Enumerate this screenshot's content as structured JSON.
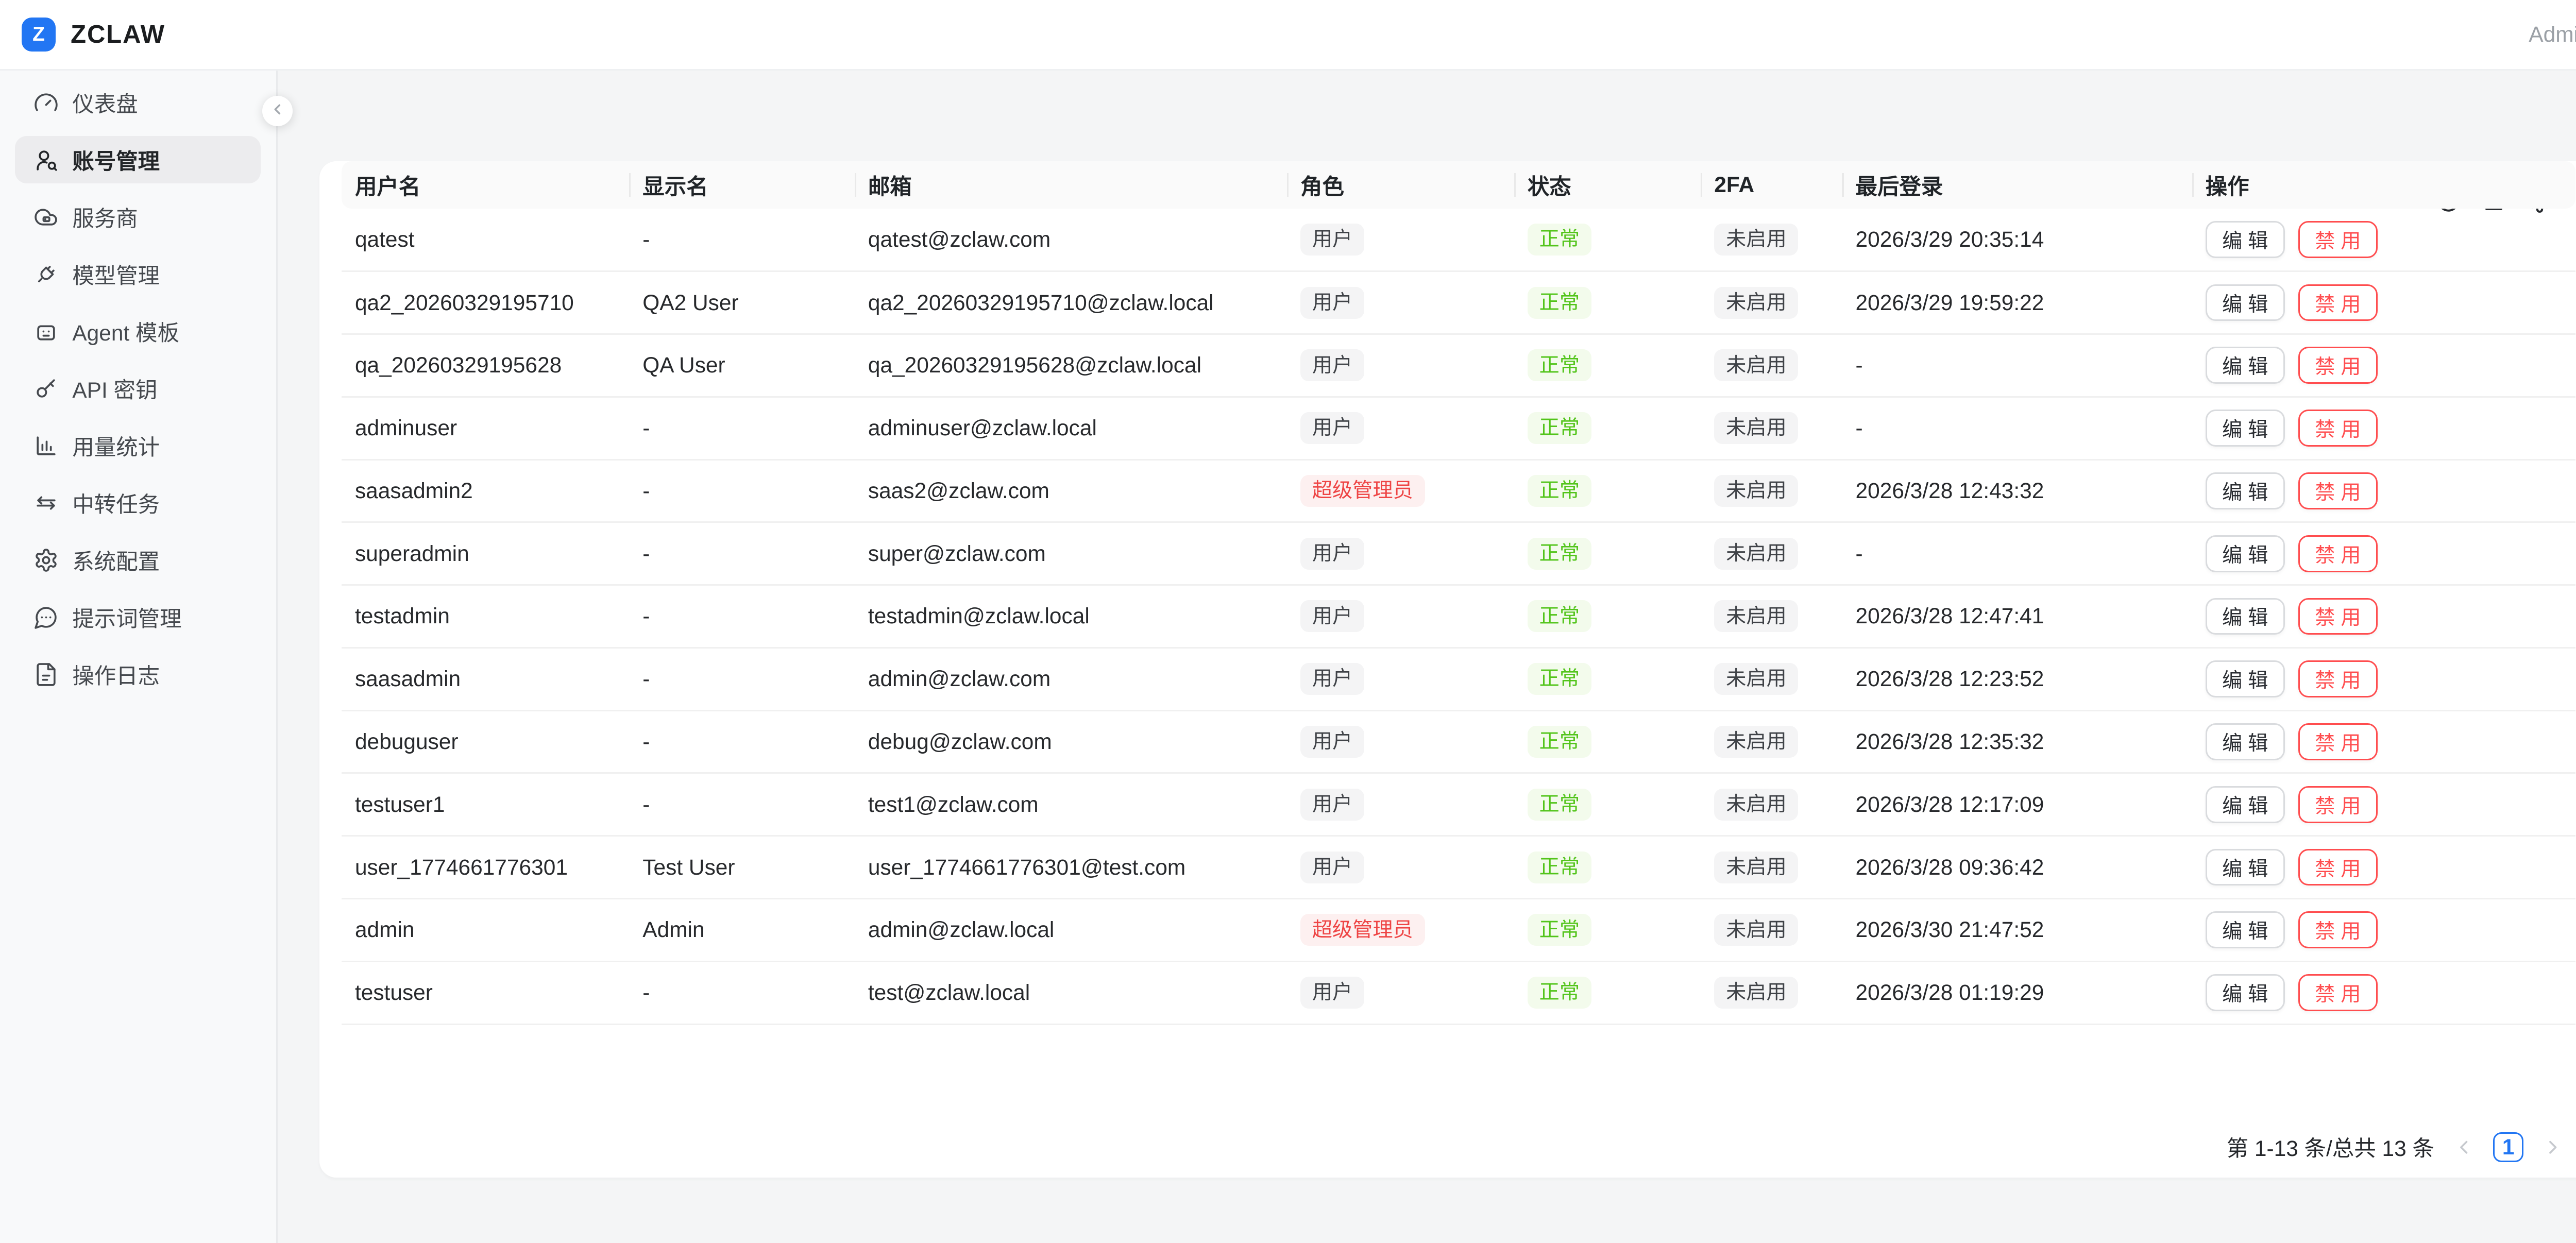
{
  "header": {
    "logo_letter": "Z",
    "brand": "ZCLAW",
    "user_label": "Admin"
  },
  "sidebar": {
    "items": [
      {
        "id": "dashboard",
        "label": "仪表盘",
        "icon": "gauge",
        "active": false
      },
      {
        "id": "accounts",
        "label": "账号管理",
        "icon": "user-search",
        "active": true
      },
      {
        "id": "providers",
        "label": "服务商",
        "icon": "cloud-server",
        "active": false
      },
      {
        "id": "models",
        "label": "模型管理",
        "icon": "plug",
        "active": false
      },
      {
        "id": "agent-templates",
        "label": "Agent 模板",
        "icon": "bot",
        "active": false
      },
      {
        "id": "api-keys",
        "label": "API 密钥",
        "icon": "key",
        "active": false
      },
      {
        "id": "usage-stats",
        "label": "用量统计",
        "icon": "bar-chart",
        "active": false
      },
      {
        "id": "relay-tasks",
        "label": "中转任务",
        "icon": "arrows-swap",
        "active": false
      },
      {
        "id": "system-config",
        "label": "系统配置",
        "icon": "gear",
        "active": false
      },
      {
        "id": "prompts",
        "label": "提示词管理",
        "icon": "message-dots",
        "active": false
      },
      {
        "id": "logs",
        "label": "操作日志",
        "icon": "file-text",
        "active": false
      }
    ],
    "collapse_icon": "chevron-left"
  },
  "toolbar": {
    "icons": [
      "refresh",
      "column-height",
      "settings"
    ]
  },
  "table": {
    "columns": [
      "用户名",
      "显示名",
      "邮箱",
      "角色",
      "状态",
      "2FA",
      "最后登录",
      "操作"
    ],
    "edit_label": "编 辑",
    "disable_label": "禁 用",
    "rows": [
      {
        "username": "qatest",
        "display_name": "-",
        "email": "qatest@zclaw.com",
        "role": "用户",
        "role_variant": "default",
        "status": "正常",
        "twofa": "未启用",
        "last_login": "2026/3/29 20:35:14"
      },
      {
        "username": "qa2_20260329195710",
        "display_name": "QA2 User",
        "email": "qa2_20260329195710@zclaw.local",
        "role": "用户",
        "role_variant": "default",
        "status": "正常",
        "twofa": "未启用",
        "last_login": "2026/3/29 19:59:22"
      },
      {
        "username": "qa_20260329195628",
        "display_name": "QA User",
        "email": "qa_20260329195628@zclaw.local",
        "role": "用户",
        "role_variant": "default",
        "status": "正常",
        "twofa": "未启用",
        "last_login": "-"
      },
      {
        "username": "adminuser",
        "display_name": "-",
        "email": "adminuser@zclaw.local",
        "role": "用户",
        "role_variant": "default",
        "status": "正常",
        "twofa": "未启用",
        "last_login": "-"
      },
      {
        "username": "saasadmin2",
        "display_name": "-",
        "email": "saas2@zclaw.com",
        "role": "超级管理员",
        "role_variant": "danger",
        "status": "正常",
        "twofa": "未启用",
        "last_login": "2026/3/28 12:43:32"
      },
      {
        "username": "superadmin",
        "display_name": "-",
        "email": "super@zclaw.com",
        "role": "用户",
        "role_variant": "default",
        "status": "正常",
        "twofa": "未启用",
        "last_login": "-"
      },
      {
        "username": "testadmin",
        "display_name": "-",
        "email": "testadmin@zclaw.local",
        "role": "用户",
        "role_variant": "default",
        "status": "正常",
        "twofa": "未启用",
        "last_login": "2026/3/28 12:47:41"
      },
      {
        "username": "saasadmin",
        "display_name": "-",
        "email": "admin@zclaw.com",
        "role": "用户",
        "role_variant": "default",
        "status": "正常",
        "twofa": "未启用",
        "last_login": "2026/3/28 12:23:52"
      },
      {
        "username": "debuguser",
        "display_name": "-",
        "email": "debug@zclaw.com",
        "role": "用户",
        "role_variant": "default",
        "status": "正常",
        "twofa": "未启用",
        "last_login": "2026/3/28 12:35:32"
      },
      {
        "username": "testuser1",
        "display_name": "-",
        "email": "test1@zclaw.com",
        "role": "用户",
        "role_variant": "default",
        "status": "正常",
        "twofa": "未启用",
        "last_login": "2026/3/28 12:17:09"
      },
      {
        "username": "user_1774661776301",
        "display_name": "Test User",
        "email": "user_1774661776301@test.com",
        "role": "用户",
        "role_variant": "default",
        "status": "正常",
        "twofa": "未启用",
        "last_login": "2026/3/28 09:36:42"
      },
      {
        "username": "admin",
        "display_name": "Admin",
        "email": "admin@zclaw.local",
        "role": "超级管理员",
        "role_variant": "danger",
        "status": "正常",
        "twofa": "未启用",
        "last_login": "2026/3/30 21:47:52"
      },
      {
        "username": "testuser",
        "display_name": "-",
        "email": "test@zclaw.local",
        "role": "用户",
        "role_variant": "default",
        "status": "正常",
        "twofa": "未启用",
        "last_login": "2026/3/28 01:19:29"
      }
    ]
  },
  "pagination": {
    "summary": "第 1-13 条/总共 13 条",
    "current_page": "1",
    "prev_icon": "chevron-left",
    "next_icon": "chevron-right"
  },
  "colors": {
    "brand_blue": "#2276f3",
    "status_green": "#52c41a",
    "status_green_bg": "#f3fbec",
    "role_red": "#ee4545",
    "role_red_bg": "#fdf0f0",
    "tag_gray_bg": "#f4f4f5",
    "danger_button": "#ff4d4f",
    "pagination_active": "#2276f3"
  }
}
